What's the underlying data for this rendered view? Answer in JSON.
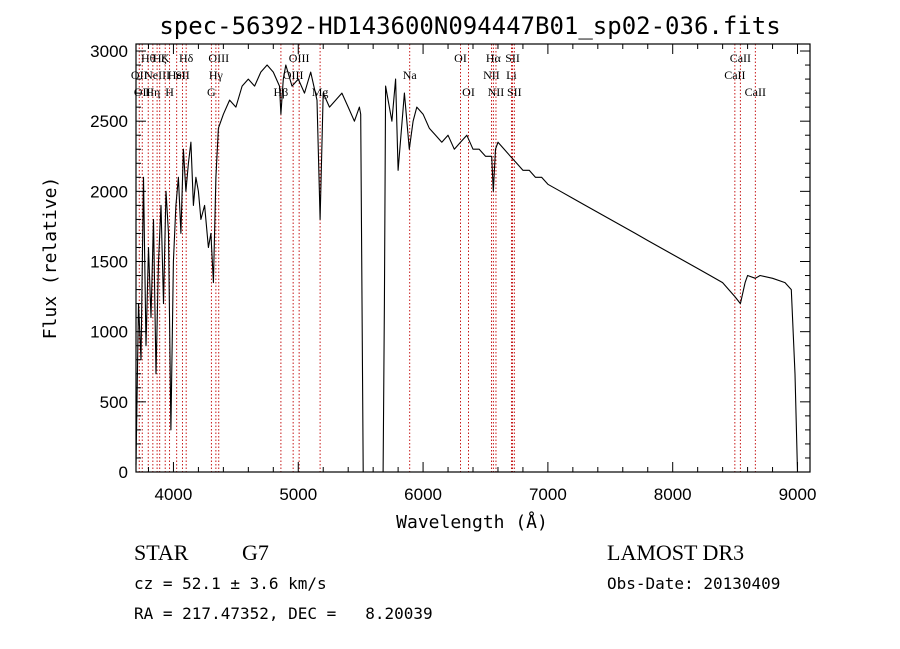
{
  "chart_data": {
    "type": "line",
    "title": "spec-56392-HD143600N094447B01_sp02-036.fits",
    "xlabel": "Wavelength (Å)",
    "ylabel": "Flux (relative)",
    "xlim": [
      3700,
      9100
    ],
    "ylim": [
      0,
      3050
    ],
    "xticks": [
      4000,
      5000,
      6000,
      7000,
      8000,
      9000
    ],
    "yticks": [
      0,
      500,
      1000,
      1500,
      2000,
      2500,
      3000
    ],
    "grid": false,
    "series": [
      {
        "name": "flux",
        "x": [
          3700,
          3720,
          3740,
          3760,
          3780,
          3800,
          3820,
          3840,
          3860,
          3880,
          3900,
          3920,
          3940,
          3960,
          3980,
          4000,
          4020,
          4040,
          4060,
          4080,
          4100,
          4120,
          4140,
          4160,
          4180,
          4200,
          4220,
          4250,
          4280,
          4300,
          4320,
          4340,
          4360,
          4380,
          4400,
          4450,
          4500,
          4550,
          4600,
          4650,
          4700,
          4750,
          4800,
          4850,
          4861,
          4880,
          4900,
          4950,
          5000,
          5050,
          5100,
          5150,
          5175,
          5200,
          5250,
          5300,
          5350,
          5400,
          5450,
          5490,
          5500,
          5520,
          5540,
          5560,
          5600,
          5650,
          5670,
          5680,
          5690,
          5700,
          5720,
          5750,
          5780,
          5800,
          5850,
          5890,
          5920,
          5950,
          6000,
          6050,
          6100,
          6150,
          6200,
          6250,
          6300,
          6350,
          6400,
          6450,
          6500,
          6550,
          6563,
          6580,
          6600,
          6650,
          6700,
          6750,
          6800,
          6850,
          6900,
          6950,
          7000,
          7100,
          7200,
          7300,
          7400,
          7500,
          7600,
          7700,
          7800,
          7900,
          8000,
          8100,
          8200,
          8300,
          8400,
          8498,
          8542,
          8580,
          8600,
          8662,
          8700,
          8800,
          8900,
          8950,
          8980,
          9000
        ],
        "y": [
          50,
          1200,
          800,
          2100,
          900,
          1600,
          1100,
          1800,
          700,
          1500,
          1900,
          1200,
          2000,
          1700,
          300,
          1500,
          1900,
          2100,
          1700,
          2300,
          2000,
          2200,
          2350,
          1900,
          2100,
          2000,
          1800,
          1900,
          1600,
          1700,
          1350,
          2100,
          2450,
          2500,
          2550,
          2650,
          2600,
          2750,
          2800,
          2750,
          2850,
          2900,
          2850,
          2750,
          2550,
          2800,
          2900,
          2750,
          2800,
          2700,
          2850,
          2650,
          1800,
          2700,
          2600,
          2650,
          2700,
          2600,
          2500,
          2600,
          2550,
          0,
          0,
          0,
          0,
          0,
          0,
          0,
          1200,
          2750,
          2650,
          2500,
          2800,
          2150,
          2700,
          2300,
          2500,
          2600,
          2550,
          2450,
          2400,
          2350,
          2400,
          2300,
          2350,
          2400,
          2300,
          2300,
          2250,
          2250,
          2000,
          2300,
          2350,
          2300,
          2250,
          2200,
          2150,
          2150,
          2100,
          2100,
          2050,
          2000,
          1950,
          1900,
          1850,
          1800,
          1750,
          1700,
          1650,
          1600,
          1550,
          1500,
          1450,
          1400,
          1350,
          1250,
          1200,
          1350,
          1400,
          1380,
          1400,
          1380,
          1350,
          1300,
          700,
          0
        ]
      }
    ],
    "lines": [
      {
        "wl": 3726,
        "label": "OII",
        "row": 2
      },
      {
        "wl": 3750,
        "label": "OII",
        "row": 3
      },
      {
        "wl": 3798,
        "label": "Hθ",
        "row": 1
      },
      {
        "wl": 3835,
        "label": "Hη",
        "row": 3
      },
      {
        "wl": 3869,
        "label": "NeIII",
        "row": 2
      },
      {
        "wl": 3890,
        "label": "Hζ",
        "row": 1
      },
      {
        "wl": 3934,
        "label": "K",
        "row": 1
      },
      {
        "wl": 3969,
        "label": "H",
        "row": 3
      },
      {
        "wl": 4026,
        "label": "HeI",
        "row": 2
      },
      {
        "wl": 4072,
        "label": "SII",
        "row": 2
      },
      {
        "wl": 4102,
        "label": "Hδ",
        "row": 1
      },
      {
        "wl": 4304,
        "label": "G",
        "row": 3
      },
      {
        "wl": 4340,
        "label": "Hγ",
        "row": 2
      },
      {
        "wl": 4363,
        "label": "OIII",
        "row": 1
      },
      {
        "wl": 4861,
        "label": "Hβ",
        "row": 3
      },
      {
        "wl": 4959,
        "label": "OIII",
        "row": 2
      },
      {
        "wl": 5007,
        "label": "OIII",
        "row": 1
      },
      {
        "wl": 5175,
        "label": "Mg",
        "row": 3
      },
      {
        "wl": 5893,
        "label": "Na",
        "row": 2
      },
      {
        "wl": 6300,
        "label": "OI",
        "row": 1
      },
      {
        "wl": 6364,
        "label": "OI",
        "row": 3
      },
      {
        "wl": 6548,
        "label": "NII",
        "row": 2
      },
      {
        "wl": 6563,
        "label": "Hα",
        "row": 1
      },
      {
        "wl": 6584,
        "label": "NII",
        "row": 3
      },
      {
        "wl": 6708,
        "label": "Li",
        "row": 2
      },
      {
        "wl": 6717,
        "label": "SII",
        "row": 1
      },
      {
        "wl": 6731,
        "label": "SII",
        "row": 3
      },
      {
        "wl": 8498,
        "label": "CaII",
        "row": 2
      },
      {
        "wl": 8542,
        "label": "CaII",
        "row": 1
      },
      {
        "wl": 8662,
        "label": "CaII",
        "row": 3
      }
    ]
  },
  "info": {
    "class_label": "STAR",
    "subclass": "G7",
    "cz": "cz = 52.1 ± 3.6 km/s",
    "radec": "RA = 217.47352, DEC =   8.20039",
    "survey": "LAMOST DR3",
    "obs_date": "Obs-Date: 20130409"
  },
  "colors": {
    "axis": "#000000",
    "spectrum": "#000000",
    "line_marker": "#c00000"
  }
}
